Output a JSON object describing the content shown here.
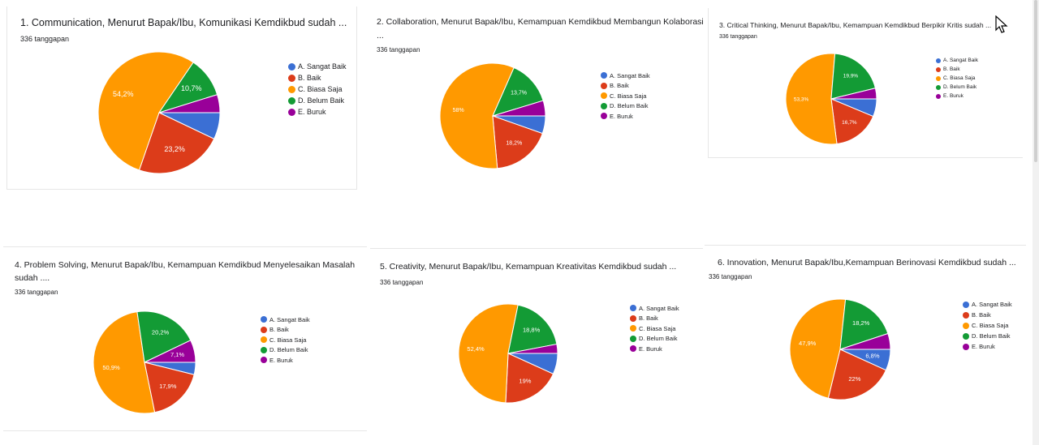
{
  "colors": {
    "A": "#3b6fd4",
    "B": "#dc3c1a",
    "C": "#ff9900",
    "D": "#139b35",
    "E": "#990099",
    "label_text": "#ffffff"
  },
  "legend_labels": [
    "A. Sangat Baik",
    "B. Baik",
    "C. Biasa Saja",
    "D. Belum Baik",
    "E. Buruk"
  ],
  "chart_data": [
    {
      "type": "pie",
      "title": "1. Communication, Menurut Bapak/Ibu, Komunikasi Kemdikbud sudah ...",
      "title_line2": "",
      "count": "336 tanggapan",
      "categories": [
        "A. Sangat Baik",
        "B. Baik",
        "C. Biasa Saja",
        "D. Belum Baik",
        "E. Buruk"
      ],
      "values": [
        7.1,
        23.2,
        54.2,
        10.7,
        4.8
      ],
      "labels": [
        "",
        "23,2%",
        "54,2%",
        "10,7%",
        ""
      ],
      "legend_placement": "right"
    },
    {
      "type": "pie",
      "title": "2. Collaboration, Menurut Bapak/Ibu, Kemampuan Kemdikbud Membangun Kolaborasi sudah",
      "title_line2": "...",
      "count": "336 tanggapan",
      "categories": [
        "A. Sangat Baik",
        "B. Baik",
        "C. Biasa Saja",
        "D. Belum Baik",
        "E. Buruk"
      ],
      "values": [
        5.4,
        18.2,
        58.0,
        13.7,
        4.7
      ],
      "labels": [
        "",
        "18,2%",
        "58%",
        "13,7%",
        ""
      ],
      "legend_placement": "right"
    },
    {
      "type": "pie",
      "title": "3. Critical Thinking, Menurut Bapak/Ibu, Kemampuan Kemdikbud Berpikir Kritis sudah ...",
      "title_line2": "",
      "count": "336 tanggapan",
      "categories": [
        "A. Sangat Baik",
        "B. Baik",
        "C. Biasa Saja",
        "D. Belum Baik",
        "E. Buruk"
      ],
      "values": [
        6.3,
        16.7,
        53.3,
        19.9,
        3.8
      ],
      "labels": [
        "",
        "16,7%",
        "53,3%",
        "19,9%",
        ""
      ],
      "legend_placement": "right"
    },
    {
      "type": "pie",
      "title": "4. Problem Solving, Menurut Bapak/Ibu, Kemampuan Kemdikbud Menyelesaikan Masalah",
      "title_line2": "sudah ....",
      "count": "336 tanggapan",
      "categories": [
        "A. Sangat Baik",
        "B. Baik",
        "C. Biasa Saja",
        "D. Belum Baik",
        "E. Buruk"
      ],
      "values": [
        3.9,
        17.9,
        50.9,
        20.2,
        7.1
      ],
      "labels": [
        "",
        "17,9%",
        "50,9%",
        "20,2%",
        "7,1%"
      ],
      "legend_placement": "right"
    },
    {
      "type": "pie",
      "title": "5. Creativity, Menurut Bapak/Ibu, Kemampuan Kreativitas Kemdikbud sudah ...",
      "title_line2": "",
      "count": "336 tanggapan",
      "categories": [
        "A. Sangat Baik",
        "B. Baik",
        "C. Biasa Saja",
        "D. Belum Baik",
        "E. Buruk"
      ],
      "values": [
        6.8,
        19.0,
        52.4,
        18.8,
        3.0
      ],
      "labels": [
        "",
        "19%",
        "52,4%",
        "18,8%",
        ""
      ],
      "legend_placement": "right"
    },
    {
      "type": "pie",
      "title": "6. Innovation, Menurut Bapak/Ibu,Kemampuan Berinovasi Kemdikbud sudah ...",
      "title_line2": "",
      "count": "336 tanggapan",
      "categories": [
        "A. Sangat Baik",
        "B. Baik",
        "C. Biasa Saja",
        "D. Belum Baik",
        "E. Buruk"
      ],
      "values": [
        6.8,
        22.0,
        47.9,
        18.2,
        5.1
      ],
      "labels": [
        "6,8%",
        "22%",
        "47,9%",
        "18,2%",
        ""
      ],
      "legend_placement": "right"
    }
  ]
}
